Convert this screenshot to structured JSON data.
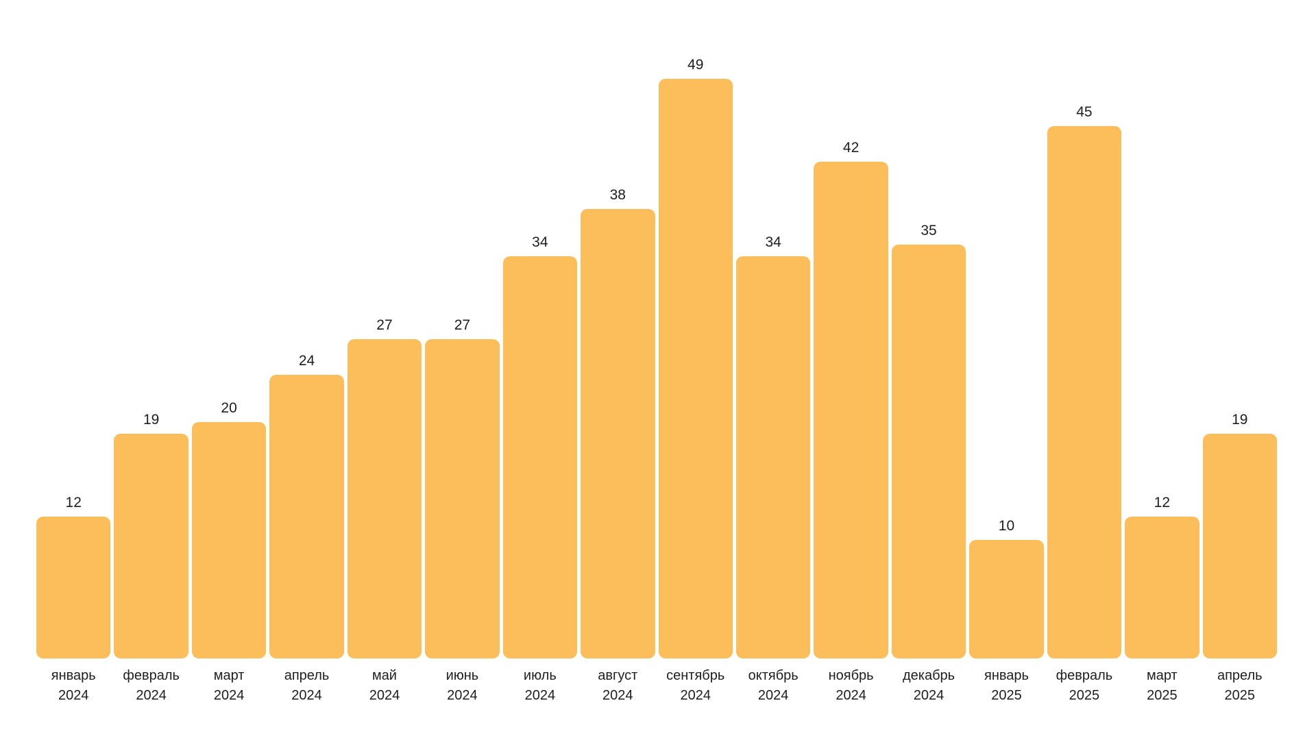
{
  "chart_data": {
    "type": "bar",
    "categories": [
      {
        "month": "январь",
        "year": "2024"
      },
      {
        "month": "февраль",
        "year": "2024"
      },
      {
        "month": "март",
        "year": "2024"
      },
      {
        "month": "апрель",
        "year": "2024"
      },
      {
        "month": "май",
        "year": "2024"
      },
      {
        "month": "июнь",
        "year": "2024"
      },
      {
        "month": "июль",
        "year": "2024"
      },
      {
        "month": "август",
        "year": "2024"
      },
      {
        "month": "сентябрь",
        "year": "2024"
      },
      {
        "month": "октябрь",
        "year": "2024"
      },
      {
        "month": "ноябрь",
        "year": "2024"
      },
      {
        "month": "декабрь",
        "year": "2024"
      },
      {
        "month": "январь",
        "year": "2025"
      },
      {
        "month": "февраль",
        "year": "2025"
      },
      {
        "month": "март",
        "year": "2025"
      },
      {
        "month": "апрель",
        "year": "2025"
      }
    ],
    "values": [
      12,
      19,
      20,
      24,
      27,
      27,
      34,
      38,
      49,
      34,
      42,
      35,
      10,
      45,
      12,
      19
    ],
    "value_labels_shown": true,
    "title": "",
    "xlabel": "",
    "ylabel": "",
    "ylim": [
      0,
      49
    ],
    "grid": false,
    "legend": false,
    "axis_lines": false,
    "colors": {
      "bar": "#FCBE5A",
      "text": "#1E1E1E",
      "background": "#FFFFFF"
    }
  }
}
